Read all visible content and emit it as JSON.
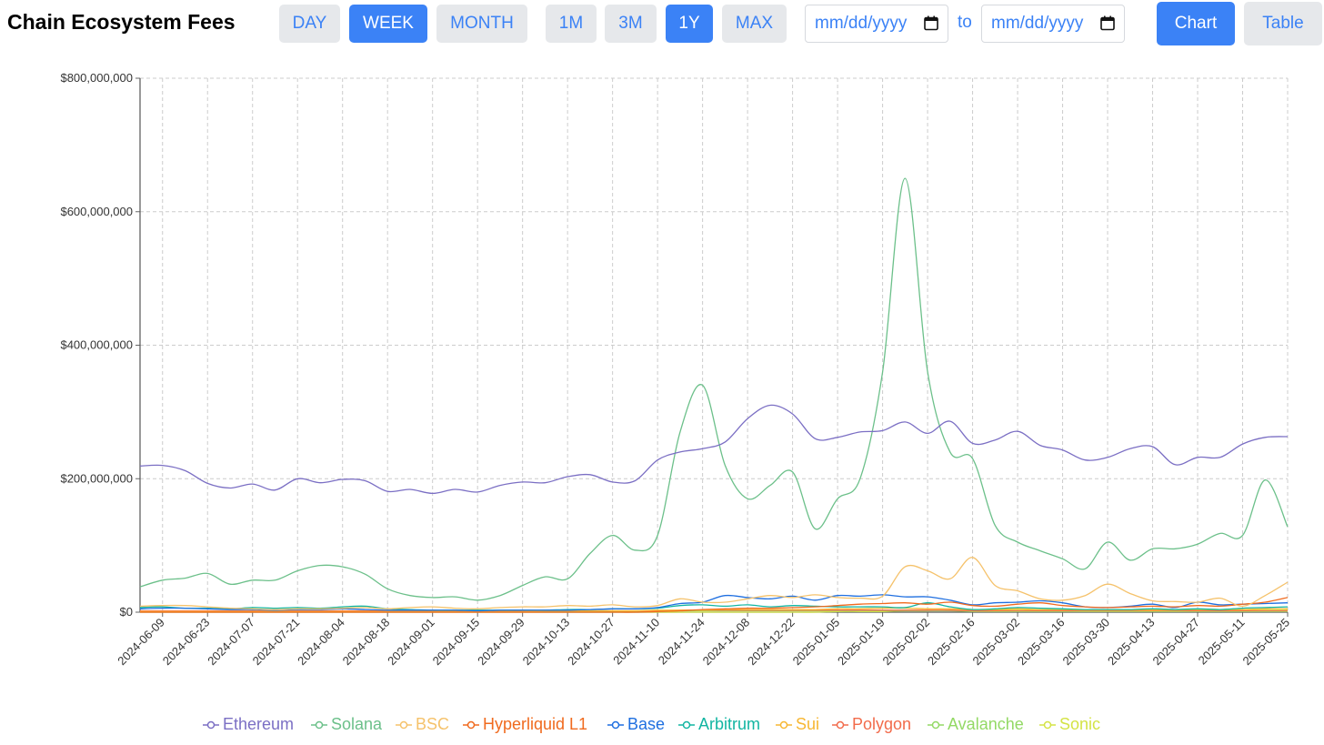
{
  "title": "Chain Ecosystem Fees",
  "granularity": {
    "day": "DAY",
    "week": "WEEK",
    "month": "MONTH",
    "selected": "WEEK"
  },
  "range": {
    "m1": "1M",
    "m3": "3M",
    "y1": "1Y",
    "max": "MAX",
    "selected": "1Y"
  },
  "date_range": {
    "start_placeholder": "mm/dd/yyyy",
    "to_label": "to",
    "end_placeholder": "mm/dd/yyyy",
    "icon": "calendar-icon"
  },
  "view": {
    "chart": "Chart",
    "table": "Table",
    "selected": "Chart"
  },
  "colors": {
    "accent": "#3b82f6",
    "button_bg": "#e6e8eb",
    "grid": "#cccccc"
  },
  "chart_data": {
    "type": "line",
    "title": "",
    "xlabel": "",
    "ylabel": "",
    "ylim": [
      0,
      800000000
    ],
    "yticks": [
      0,
      200000000,
      400000000,
      600000000,
      800000000
    ],
    "ytick_labels": [
      "$0",
      "$200,000,000",
      "$400,000,000",
      "$600,000,000",
      "$800,000,000"
    ],
    "grid": true,
    "legend_position": "bottom",
    "x": [
      "2024-06-02",
      "2024-06-09",
      "2024-06-16",
      "2024-06-23",
      "2024-06-30",
      "2024-07-07",
      "2024-07-14",
      "2024-07-21",
      "2024-07-28",
      "2024-08-04",
      "2024-08-11",
      "2024-08-18",
      "2024-08-25",
      "2024-09-01",
      "2024-09-08",
      "2024-09-15",
      "2024-09-22",
      "2024-09-29",
      "2024-10-06",
      "2024-10-13",
      "2024-10-20",
      "2024-10-27",
      "2024-11-03",
      "2024-11-10",
      "2024-11-17",
      "2024-11-24",
      "2024-12-01",
      "2024-12-08",
      "2024-12-15",
      "2024-12-22",
      "2024-12-29",
      "2025-01-05",
      "2025-01-12",
      "2025-01-19",
      "2025-01-26",
      "2025-02-02",
      "2025-02-09",
      "2025-02-16",
      "2025-02-23",
      "2025-03-02",
      "2025-03-09",
      "2025-03-16",
      "2025-03-23",
      "2025-03-30",
      "2025-04-06",
      "2025-04-13",
      "2025-04-20",
      "2025-04-27",
      "2025-05-04",
      "2025-05-11",
      "2025-05-18",
      "2025-05-25"
    ],
    "x_ticks": [
      "2024-06-09",
      "2024-06-23",
      "2024-07-07",
      "2024-07-21",
      "2024-08-04",
      "2024-08-18",
      "2024-09-01",
      "2024-09-15",
      "2024-09-29",
      "2024-10-13",
      "2024-10-27",
      "2024-11-10",
      "2024-11-24",
      "2024-12-08",
      "2024-12-22",
      "2025-01-05",
      "2025-01-19",
      "2025-02-02",
      "2025-02-16",
      "2025-03-02",
      "2025-03-16",
      "2025-03-30",
      "2025-04-13",
      "2025-04-27",
      "2025-05-11",
      "2025-05-25"
    ],
    "series": [
      {
        "name": "Ethereum",
        "color": "#7b6fc4",
        "values": [
          219000000,
          220000000,
          212000000,
          193000000,
          186000000,
          192000000,
          183000000,
          200000000,
          194000000,
          199000000,
          197000000,
          181000000,
          184000000,
          178000000,
          184000000,
          180000000,
          190000000,
          195000000,
          194000000,
          203000000,
          206000000,
          195000000,
          197000000,
          228000000,
          240000000,
          245000000,
          255000000,
          290000000,
          310000000,
          297000000,
          260000000,
          262000000,
          270000000,
          272000000,
          285000000,
          268000000,
          286000000,
          253000000,
          258000000,
          271000000,
          250000000,
          243000000,
          228000000,
          232000000,
          245000000,
          248000000,
          221000000,
          232000000,
          232000000,
          252000000,
          262000000,
          263000000
        ]
      },
      {
        "name": "Solana",
        "color": "#6cc08a",
        "values": [
          38000000,
          48000000,
          51000000,
          58000000,
          42000000,
          48000000,
          48000000,
          62000000,
          70000000,
          68000000,
          57000000,
          35000000,
          25000000,
          22000000,
          23000000,
          18000000,
          25000000,
          40000000,
          53000000,
          50000000,
          88000000,
          115000000,
          93000000,
          115000000,
          270000000,
          340000000,
          220000000,
          170000000,
          190000000,
          210000000,
          125000000,
          170000000,
          200000000,
          360000000,
          650000000,
          360000000,
          240000000,
          230000000,
          130000000,
          105000000,
          92000000,
          80000000,
          65000000,
          105000000,
          78000000,
          95000000,
          95000000,
          102000000,
          118000000,
          115000000,
          198000000,
          128000000
        ]
      },
      {
        "name": "BSC",
        "color": "#f5c26b",
        "values": [
          9000000,
          10000000,
          10000000,
          8000000,
          6000000,
          5000000,
          4000000,
          5000000,
          5000000,
          6000000,
          7000000,
          5000000,
          7000000,
          8000000,
          6000000,
          5000000,
          7000000,
          8000000,
          8000000,
          10000000,
          9000000,
          11000000,
          8000000,
          10000000,
          20000000,
          15000000,
          15000000,
          20000000,
          25000000,
          22000000,
          26000000,
          22000000,
          21000000,
          24000000,
          68000000,
          62000000,
          50000000,
          82000000,
          40000000,
          32000000,
          20000000,
          18000000,
          25000000,
          42000000,
          28000000,
          17000000,
          16000000,
          15000000,
          21000000,
          9000000,
          25000000,
          45000000
        ]
      },
      {
        "name": "Hyperliquid L1",
        "color": "#f06a1e",
        "values": [
          0,
          0,
          0,
          0,
          0,
          0,
          0,
          0,
          0,
          0,
          0,
          0,
          0,
          0,
          0,
          0,
          0,
          0,
          0,
          0,
          0,
          0,
          0,
          1000000,
          2000000,
          4000000,
          5000000,
          6000000,
          6000000,
          7000000,
          8000000,
          10000000,
          12000000,
          13000000,
          14000000,
          12000000,
          15000000,
          10000000,
          9000000,
          12000000,
          14000000,
          10000000,
          8000000,
          7000000,
          8000000,
          9000000,
          8000000,
          10000000,
          9000000,
          12000000,
          15000000,
          22000000
        ]
      },
      {
        "name": "Base",
        "color": "#1f6fe0",
        "values": [
          5000000,
          6000000,
          6000000,
          5000000,
          4000000,
          4000000,
          3000000,
          4000000,
          4000000,
          5000000,
          4000000,
          3000000,
          3000000,
          3000000,
          3000000,
          2000000,
          3000000,
          3000000,
          3000000,
          3000000,
          4000000,
          5000000,
          5000000,
          7000000,
          13000000,
          15000000,
          25000000,
          22000000,
          20000000,
          24000000,
          18000000,
          25000000,
          24000000,
          26000000,
          23000000,
          23000000,
          18000000,
          11000000,
          14000000,
          15000000,
          17000000,
          14000000,
          8000000,
          7000000,
          9000000,
          12000000,
          7000000,
          15000000,
          11000000,
          12000000,
          13000000,
          14000000
        ]
      },
      {
        "name": "Arbitrum",
        "color": "#12b5a2",
        "values": [
          7000000,
          8000000,
          6000000,
          6000000,
          5000000,
          7000000,
          6000000,
          7000000,
          6000000,
          8000000,
          9000000,
          5000000,
          4000000,
          3000000,
          3000000,
          3000000,
          3000000,
          3000000,
          3000000,
          4000000,
          4000000,
          5000000,
          5000000,
          6000000,
          10000000,
          11000000,
          9000000,
          11000000,
          8000000,
          10000000,
          9000000,
          8000000,
          8000000,
          8000000,
          7000000,
          14000000,
          8000000,
          4000000,
          5000000,
          7000000,
          6000000,
          5000000,
          4000000,
          4000000,
          4000000,
          5000000,
          4000000,
          5000000,
          4000000,
          6000000,
          7000000,
          8000000
        ]
      },
      {
        "name": "Sui",
        "color": "#f7b733",
        "values": [
          1000000,
          1000000,
          1000000,
          1000000,
          1000000,
          1000000,
          1000000,
          1000000,
          1000000,
          1000000,
          1000000,
          1000000,
          1000000,
          1000000,
          1000000,
          1000000,
          1000000,
          1000000,
          2000000,
          2000000,
          2000000,
          2000000,
          2000000,
          3000000,
          3000000,
          3000000,
          4000000,
          4000000,
          4000000,
          4000000,
          4000000,
          5000000,
          5000000,
          6000000,
          6000000,
          5000000,
          5000000,
          4000000,
          4000000,
          5000000,
          4000000,
          4000000,
          3000000,
          3000000,
          3000000,
          3000000,
          3000000,
          4000000,
          4000000,
          4000000,
          5000000,
          5000000
        ]
      },
      {
        "name": "Polygon",
        "color": "#f26b4b",
        "values": [
          2000000,
          2000000,
          2000000,
          2000000,
          2000000,
          2000000,
          2000000,
          2000000,
          2000000,
          2000000,
          2000000,
          2000000,
          2000000,
          2000000,
          2000000,
          2000000,
          2000000,
          2000000,
          2000000,
          2000000,
          2000000,
          2000000,
          2000000,
          2000000,
          3000000,
          3000000,
          3000000,
          3000000,
          3000000,
          3000000,
          3000000,
          3000000,
          3000000,
          3000000,
          3000000,
          3000000,
          3000000,
          2000000,
          2000000,
          2000000,
          2000000,
          2000000,
          2000000,
          2000000,
          2000000,
          2000000,
          2000000,
          2000000,
          2000000,
          2000000,
          2000000,
          2000000
        ]
      },
      {
        "name": "Avalanche",
        "color": "#93d965",
        "values": [
          1000000,
          1000000,
          1000000,
          1000000,
          1000000,
          1000000,
          1000000,
          1000000,
          1000000,
          1000000,
          1000000,
          1000000,
          1000000,
          1000000,
          1000000,
          1000000,
          1000000,
          1000000,
          1000000,
          1000000,
          1000000,
          1000000,
          1000000,
          1000000,
          2000000,
          2000000,
          2000000,
          2000000,
          2000000,
          2000000,
          2000000,
          2000000,
          2000000,
          2000000,
          2000000,
          2000000,
          2000000,
          1000000,
          1000000,
          1000000,
          1000000,
          1000000,
          1000000,
          1000000,
          1000000,
          1000000,
          1000000,
          1000000,
          1000000,
          1000000,
          1000000,
          1000000
        ]
      },
      {
        "name": "Sonic",
        "color": "#d4e345",
        "values": [
          0,
          0,
          0,
          0,
          0,
          0,
          0,
          0,
          0,
          0,
          0,
          0,
          0,
          0,
          0,
          0,
          0,
          0,
          0,
          0,
          0,
          0,
          0,
          0,
          0,
          0,
          0,
          0,
          0,
          0,
          0,
          1000000,
          1000000,
          1000000,
          2000000,
          2000000,
          3000000,
          3000000,
          3000000,
          4000000,
          3000000,
          3000000,
          3000000,
          3000000,
          3000000,
          3000000,
          3000000,
          3000000,
          3000000,
          3000000,
          3000000,
          3000000
        ]
      }
    ]
  }
}
